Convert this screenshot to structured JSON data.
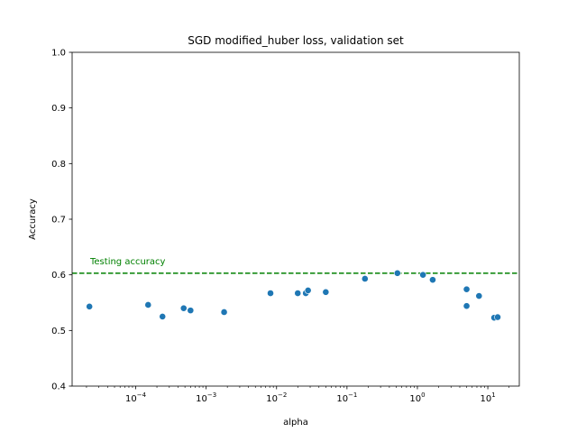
{
  "chart_data": {
    "type": "scatter",
    "title": "SGD modified_huber loss, validation set",
    "xlabel": "alpha",
    "ylabel": "Accuracy",
    "xscale": "log",
    "xlim": [
      1.25e-05,
      28
    ],
    "ylim": [
      0.4,
      1.0
    ],
    "grid": false,
    "x_ticks": [
      {
        "value": 0.0001,
        "base": "10",
        "exp": "−4"
      },
      {
        "value": 0.001,
        "base": "10",
        "exp": "−3"
      },
      {
        "value": 0.01,
        "base": "10",
        "exp": "−2"
      },
      {
        "value": 0.1,
        "base": "10",
        "exp": "−1"
      },
      {
        "value": 1,
        "base": "10",
        "exp": "0"
      },
      {
        "value": 10,
        "base": "10",
        "exp": "1"
      }
    ],
    "y_ticks": [
      "0.4",
      "0.5",
      "0.6",
      "0.7",
      "0.8",
      "0.9",
      "1.0"
    ],
    "series": [
      {
        "color": "#1f77b4",
        "points": [
          {
            "x": 2.2e-05,
            "y": 0.543
          },
          {
            "x": 0.00015,
            "y": 0.546
          },
          {
            "x": 0.00024,
            "y": 0.525
          },
          {
            "x": 0.00048,
            "y": 0.54
          },
          {
            "x": 0.0006,
            "y": 0.536
          },
          {
            "x": 0.0018,
            "y": 0.533
          },
          {
            "x": 0.0082,
            "y": 0.567
          },
          {
            "x": 0.02,
            "y": 0.567
          },
          {
            "x": 0.026,
            "y": 0.567
          },
          {
            "x": 0.028,
            "y": 0.572
          },
          {
            "x": 0.05,
            "y": 0.569
          },
          {
            "x": 0.18,
            "y": 0.593
          },
          {
            "x": 0.52,
            "y": 0.603
          },
          {
            "x": 1.2,
            "y": 0.6
          },
          {
            "x": 1.65,
            "y": 0.591
          },
          {
            "x": 5.0,
            "y": 0.574
          },
          {
            "x": 5.0,
            "y": 0.544
          },
          {
            "x": 7.5,
            "y": 0.562
          },
          {
            "x": 12.3,
            "y": 0.523
          },
          {
            "x": 13.8,
            "y": 0.524
          }
        ]
      }
    ],
    "reference_line": {
      "y": 0.603,
      "label": "Testing accuracy",
      "color": "#008000",
      "style": "dashed"
    }
  }
}
